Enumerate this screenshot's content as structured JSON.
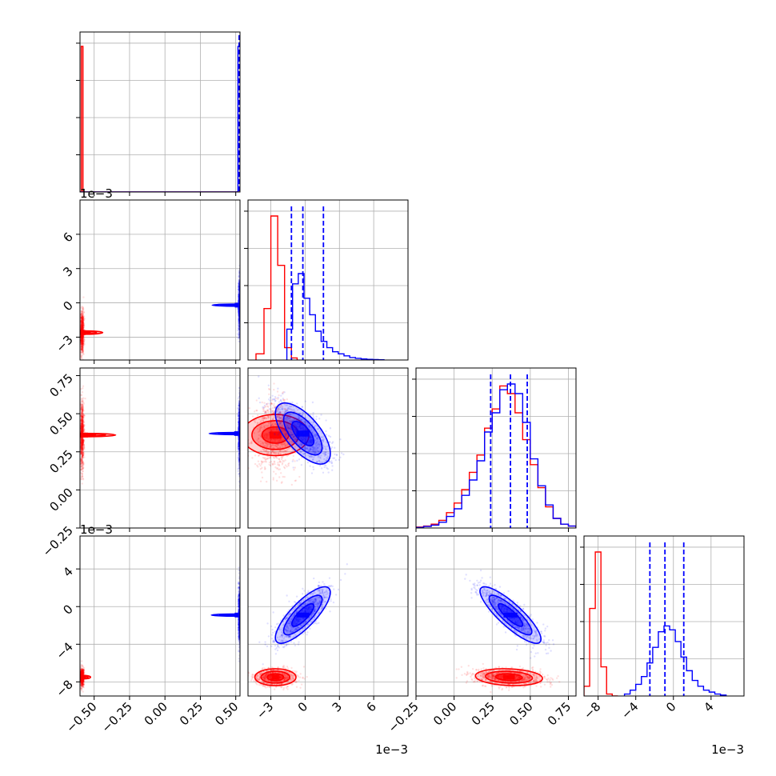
{
  "chart_data": {
    "type": "corner",
    "grid": true,
    "colors": {
      "red": "#ff0000",
      "blue": "#0000ff",
      "grid": "#b0b0b0"
    },
    "parameter_ranges": [
      [
        -0.6,
        0.53
      ],
      [
        -5.0,
        9.0
      ],
      [
        -0.25,
        0.8
      ],
      [
        -9.5,
        7.5
      ]
    ],
    "ticks": [
      [
        "−0.50",
        "−0.25",
        "0.00",
        "0.25",
        "0.50"
      ],
      [
        "−3",
        "0",
        "3",
        "6"
      ],
      [
        "−0.25",
        "0.00",
        "0.25",
        "0.50",
        "0.75"
      ],
      [
        "−8",
        "−4",
        "0",
        "4"
      ]
    ],
    "tick_values": [
      [
        -0.5,
        -0.25,
        0.0,
        0.25,
        0.5
      ],
      [
        -3,
        0,
        3,
        6
      ],
      [
        -0.25,
        0.0,
        0.25,
        0.5,
        0.75
      ],
      [
        -8,
        -4,
        0,
        4
      ]
    ],
    "offset_texts": {
      "row1_y": "1e−3",
      "row3_y": "1e−3",
      "col1_x": "1e−3",
      "col3_x": "1e−3"
    },
    "series": [
      {
        "color": "red",
        "means": [
          -0.585,
          -2.6,
          0.36,
          -7.5
        ],
        "stds": [
          0.006,
          0.9,
          0.11,
          0.45
        ],
        "hist1": {
          "edges": [
            -4.3,
            -3.6,
            -3.0,
            -2.4,
            -1.8,
            -1.2,
            -0.7
          ],
          "counts": [
            0.03,
            0.25,
            0.7,
            0.46,
            0.06,
            0.01
          ]
        },
        "hist2": {
          "edges": [
            -0.25,
            -0.2,
            -0.15,
            -0.1,
            -0.05,
            0.0,
            0.05,
            0.1,
            0.15,
            0.2,
            0.25,
            0.3,
            0.35,
            0.4,
            0.45,
            0.5,
            0.55,
            0.6,
            0.65,
            0.7,
            0.75,
            0.8
          ],
          "counts": [
            0.005,
            0.01,
            0.02,
            0.04,
            0.08,
            0.13,
            0.2,
            0.29,
            0.38,
            0.52,
            0.62,
            0.74,
            0.7,
            0.6,
            0.46,
            0.33,
            0.21,
            0.11,
            0.05,
            0.02,
            0.01
          ]
        },
        "hist3": {
          "edges": [
            -9.5,
            -8.9,
            -8.3,
            -7.7,
            -7.1,
            -6.5,
            -5.9
          ],
          "counts": [
            0.05,
            0.45,
            0.74,
            0.15,
            0.01,
            0.0
          ]
        }
      },
      {
        "color": "blue",
        "means": [
          0.527,
          -0.2,
          0.37,
          -0.9
        ],
        "stds": [
          0.004,
          1.2,
          0.1,
          1.5
        ],
        "quantiles": [
          [
            0.524,
            0.528,
            0.531
          ],
          [
            -1.2,
            -0.2,
            1.6
          ],
          [
            0.24,
            0.37,
            0.48
          ],
          [
            -2.5,
            -0.9,
            1.1
          ]
        ],
        "hist1": {
          "edges": [
            -1.6,
            -1.1,
            -0.6,
            -0.1,
            0.4,
            0.9,
            1.4,
            1.9,
            2.4,
            2.9,
            3.4,
            3.9,
            4.4,
            4.9,
            5.4,
            5.9,
            6.4,
            6.9
          ],
          "counts": [
            0.15,
            0.37,
            0.42,
            0.3,
            0.22,
            0.14,
            0.09,
            0.06,
            0.04,
            0.03,
            0.02,
            0.012,
            0.008,
            0.005,
            0.003,
            0.002,
            0.001
          ]
        },
        "hist2": {
          "edges": [
            -0.25,
            -0.2,
            -0.15,
            -0.1,
            -0.05,
            0.0,
            0.05,
            0.1,
            0.15,
            0.2,
            0.25,
            0.3,
            0.35,
            0.4,
            0.45,
            0.5,
            0.55,
            0.6,
            0.65,
            0.7,
            0.75,
            0.8
          ],
          "counts": [
            0.003,
            0.008,
            0.015,
            0.03,
            0.06,
            0.1,
            0.17,
            0.25,
            0.35,
            0.5,
            0.6,
            0.72,
            0.75,
            0.7,
            0.55,
            0.36,
            0.22,
            0.12,
            0.05,
            0.02,
            0.01
          ]
        },
        "hist3": {
          "edges": [
            -5.2,
            -4.6,
            -4.0,
            -3.4,
            -2.8,
            -2.2,
            -1.6,
            -1.0,
            -0.4,
            0.2,
            0.8,
            1.4,
            2.0,
            2.6,
            3.2,
            3.8,
            4.4,
            5.0,
            5.6
          ],
          "counts": [
            0.01,
            0.03,
            0.06,
            0.1,
            0.17,
            0.25,
            0.33,
            0.36,
            0.34,
            0.28,
            0.2,
            0.13,
            0.08,
            0.05,
            0.03,
            0.02,
            0.01,
            0.005
          ]
        }
      }
    ],
    "correlations_red": {
      "1-2": 0.0,
      "1-3": 0.0,
      "2-3": -0.15
    },
    "correlations_blue": {
      "1-2": -0.65,
      "1-3": 0.8,
      "2-3": -0.85
    }
  }
}
